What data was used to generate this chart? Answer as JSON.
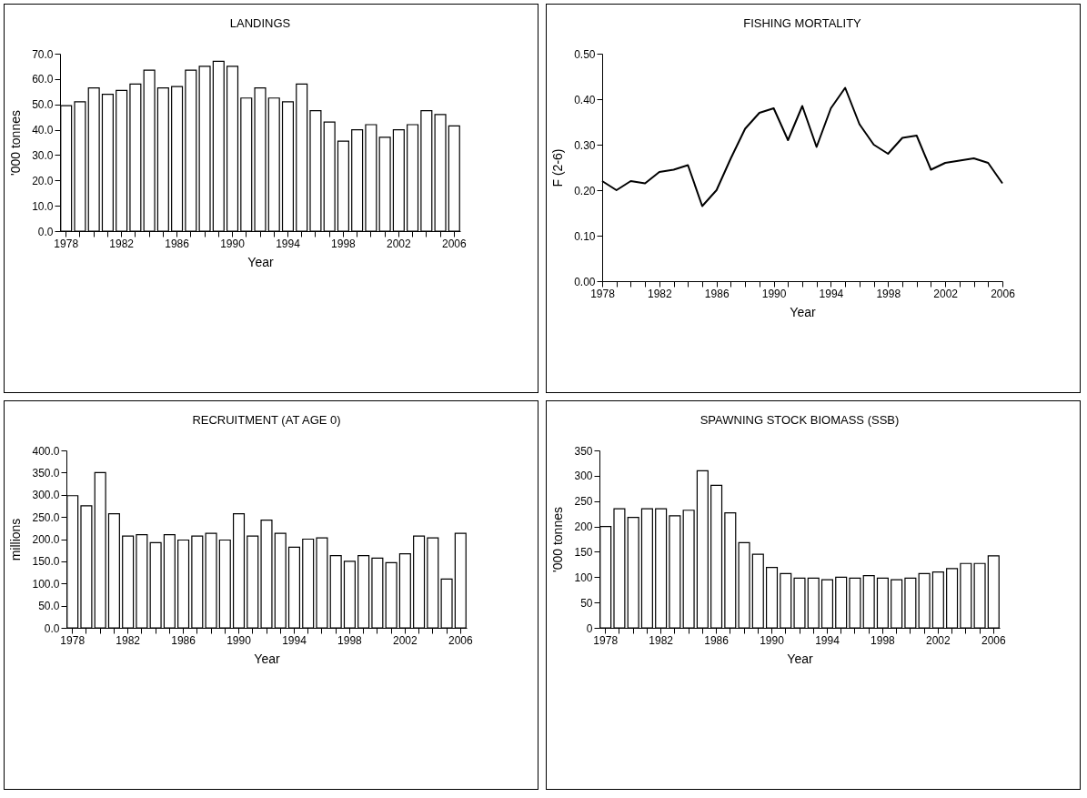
{
  "chart_data": [
    {
      "type": "bar",
      "title": "LANDINGS",
      "xlabel": "Year",
      "ylabel": "'000 tonnes",
      "categories": [
        "1978",
        null,
        null,
        null,
        "1982",
        null,
        null,
        null,
        "1986",
        null,
        null,
        null,
        "1990",
        null,
        null,
        null,
        "1994",
        null,
        null,
        null,
        "1998",
        null,
        null,
        null,
        "2002",
        null,
        null,
        null,
        "2006"
      ],
      "values": [
        49.5,
        51,
        56.5,
        54,
        55.5,
        58,
        63.5,
        56.5,
        57,
        63.5,
        65,
        67,
        65,
        52.5,
        56.5,
        52.5,
        51,
        58,
        47.5,
        43,
        35.5,
        40,
        42,
        37,
        40,
        42,
        47.5,
        46,
        41.5
      ],
      "color": "#ffffff",
      "ylim": [
        0,
        70
      ],
      "yticks": [
        {
          "value": 0,
          "label": "0.0"
        },
        {
          "value": 10,
          "label": "10.0"
        },
        {
          "value": 20,
          "label": "20.0"
        },
        {
          "value": 30,
          "label": "30.0"
        },
        {
          "value": 40,
          "label": "40.0"
        },
        {
          "value": 50,
          "label": "50.0"
        },
        {
          "value": 60,
          "label": "60.0"
        },
        {
          "value": 70,
          "label": "70.0"
        }
      ]
    },
    {
      "type": "line",
      "title": "FISHING MORTALITY",
      "xlabel": "Year",
      "ylabel": "F (2-6)",
      "categories": [
        "1978",
        null,
        null,
        null,
        "1982",
        null,
        null,
        null,
        "1986",
        null,
        null,
        null,
        "1990",
        null,
        null,
        null,
        "1994",
        null,
        null,
        null,
        "1998",
        null,
        null,
        null,
        "2002",
        null,
        null,
        null,
        "2006"
      ],
      "values": [
        0.22,
        0.2,
        0.22,
        0.215,
        0.24,
        0.245,
        0.255,
        0.165,
        0.2,
        0.27,
        0.335,
        0.37,
        0.38,
        0.31,
        0.385,
        0.295,
        0.38,
        0.425,
        0.345,
        0.3,
        0.28,
        0.315,
        0.32,
        0.245,
        0.26,
        0.265,
        0.27,
        0.26,
        0.215
      ],
      "color": "#000000",
      "ylim": [
        0,
        0.5
      ],
      "yticks": [
        {
          "value": 0,
          "label": "0.00"
        },
        {
          "value": 0.1,
          "label": "0.10"
        },
        {
          "value": 0.2,
          "label": "0.20"
        },
        {
          "value": 0.3,
          "label": "0.30"
        },
        {
          "value": 0.4,
          "label": "0.40"
        },
        {
          "value": 0.5,
          "label": "0.50"
        }
      ]
    },
    {
      "type": "bar",
      "title": "RECRUITMENT (AT AGE 0)",
      "xlabel": "Year",
      "ylabel": "millions",
      "categories": [
        "1978",
        null,
        null,
        null,
        "1982",
        null,
        null,
        null,
        "1986",
        null,
        null,
        null,
        "1990",
        null,
        null,
        null,
        "1994",
        null,
        null,
        null,
        "1998",
        null,
        null,
        null,
        "2002",
        null,
        null,
        null,
        "2006"
      ],
      "values": [
        298,
        275,
        350,
        257,
        207,
        210,
        192,
        210,
        198,
        207,
        213,
        198,
        257,
        207,
        243,
        213,
        182,
        200,
        203,
        163,
        150,
        163,
        157,
        147,
        167,
        207,
        203,
        110,
        213
      ],
      "color": "#ffffff",
      "ylim": [
        0,
        400
      ],
      "yticks": [
        {
          "value": 0,
          "label": "0.0"
        },
        {
          "value": 50,
          "label": "50.0"
        },
        {
          "value": 100,
          "label": "100.0"
        },
        {
          "value": 150,
          "label": "150.0"
        },
        {
          "value": 200,
          "label": "200.0"
        },
        {
          "value": 250,
          "label": "250.0"
        },
        {
          "value": 300,
          "label": "300.0"
        },
        {
          "value": 350,
          "label": "350.0"
        },
        {
          "value": 400,
          "label": "400.0"
        }
      ]
    },
    {
      "type": "bar",
      "title": "SPAWNING STOCK BIOMASS (SSB)",
      "xlabel": "Year",
      "ylabel": "'000 tonnes",
      "categories": [
        "1978",
        null,
        null,
        null,
        "1982",
        null,
        null,
        null,
        "1986",
        null,
        null,
        null,
        "1990",
        null,
        null,
        null,
        "1994",
        null,
        null,
        null,
        "1998",
        null,
        null,
        null,
        "2002",
        null,
        null,
        null,
        "2006"
      ],
      "values": [
        200,
        235,
        218,
        235,
        235,
        221,
        232,
        310,
        281,
        227,
        168,
        145,
        119,
        107,
        98,
        98,
        95,
        100,
        98,
        103,
        98,
        95,
        98,
        107,
        110,
        117,
        127,
        127,
        142
      ],
      "color": "#ffffff",
      "ylim": [
        0,
        350
      ],
      "yticks": [
        0,
        50,
        100,
        150,
        200,
        250,
        300,
        350
      ]
    }
  ]
}
